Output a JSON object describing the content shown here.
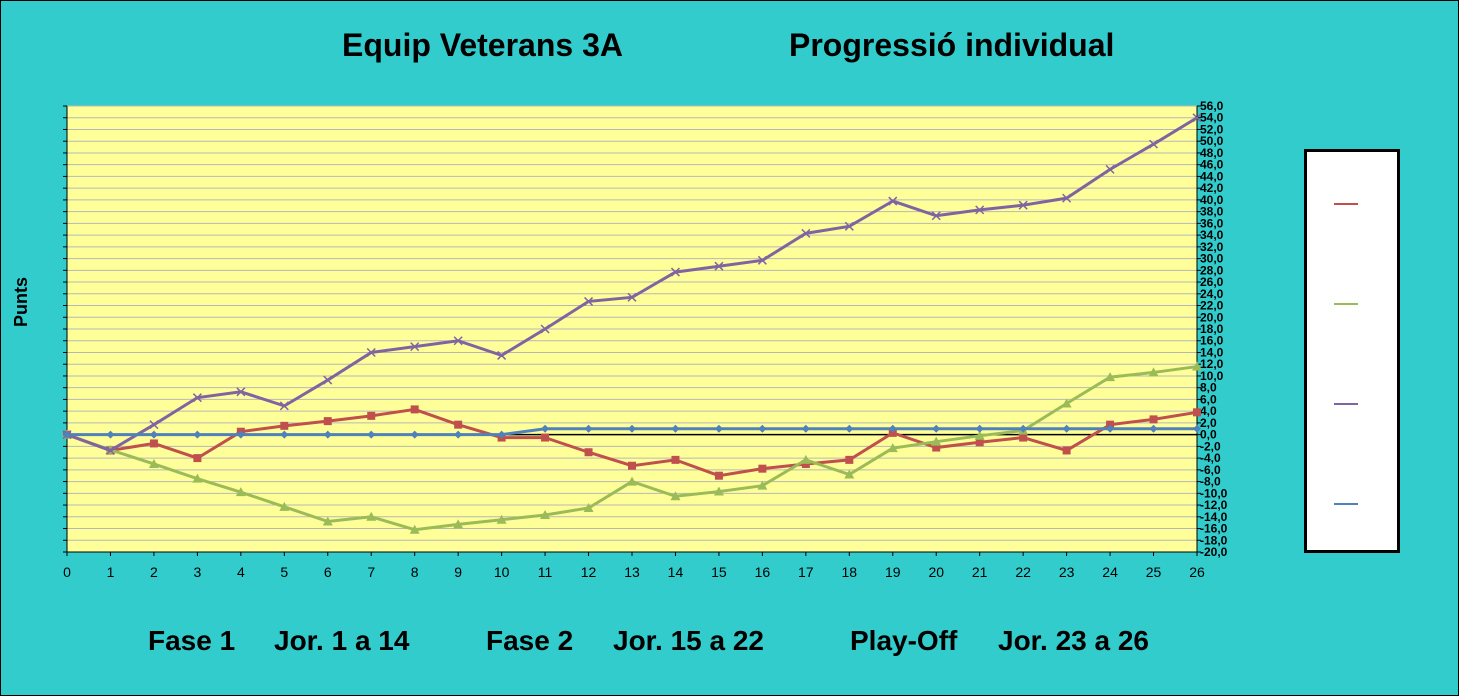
{
  "header": {
    "title_left": "Equip Veterans 3A",
    "title_right": "Progressió individual"
  },
  "footer": {
    "phase1": "Fase 1",
    "phase1_range": "Jor.  1 a 14",
    "phase2": "Fase 2",
    "phase2_range": "Jor. 15 a 22",
    "phase3": "Play-Off",
    "phase3_range": "Jor. 23 a 26"
  },
  "chart_data": {
    "type": "line",
    "title": "",
    "xlabel": "",
    "ylabel": "Punts",
    "x": [
      0,
      1,
      2,
      3,
      4,
      5,
      6,
      7,
      8,
      9,
      10,
      11,
      12,
      13,
      14,
      15,
      16,
      17,
      18,
      19,
      20,
      21,
      22,
      23,
      24,
      25,
      26
    ],
    "xlim": [
      0,
      26
    ],
    "ylim": [
      -20,
      56
    ],
    "ytick_step": 2,
    "ytick_format": "decimal-comma-1",
    "grid": true,
    "legend_position": "right",
    "plot_background": "#FFFF99",
    "series": [
      {
        "name": "",
        "color": "#C0504D",
        "marker": "square",
        "values": [
          0,
          -2.7,
          -1.5,
          -4,
          0.5,
          1.5,
          2.3,
          3.2,
          4.3,
          1.7,
          -0.5,
          -0.5,
          -3,
          -5.3,
          -4.3,
          -7,
          -5.8,
          -5,
          -4.3,
          0.3,
          -2.2,
          -1.3,
          -0.5,
          -2.7,
          1.7,
          2.6,
          3.8
        ]
      },
      {
        "name": "",
        "color": "#9BBB59",
        "marker": "triangle",
        "values": [
          0,
          -2.6,
          -5,
          -7.5,
          -9.8,
          -12.3,
          -14.8,
          -14,
          -16.2,
          -15.3,
          -14.5,
          -13.7,
          -12.5,
          -8,
          -10.5,
          -9.7,
          -8.7,
          -4.3,
          -6.8,
          -2.3,
          -1.2,
          -0.2,
          0.7,
          5.3,
          9.8,
          10.6,
          11.6
        ]
      },
      {
        "name": "",
        "color": "#8064A2",
        "marker": "x",
        "values": [
          0,
          -2.7,
          1.7,
          6.3,
          7.3,
          4.9,
          9.3,
          14,
          15,
          16,
          13.5,
          18,
          22.7,
          23.4,
          27.7,
          28.7,
          29.7,
          34.3,
          35.5,
          39.8,
          37.3,
          38.3,
          39.1,
          40.3,
          45.2,
          49.5,
          54
        ]
      },
      {
        "name": "",
        "color": "#4F81BD",
        "marker": "diamond",
        "values": [
          0,
          0,
          0,
          0,
          0,
          0,
          0,
          0,
          0,
          0,
          0,
          1,
          1,
          1,
          1,
          1,
          1,
          1,
          1,
          1,
          1,
          1,
          1,
          1,
          1,
          1,
          1
        ]
      }
    ]
  }
}
